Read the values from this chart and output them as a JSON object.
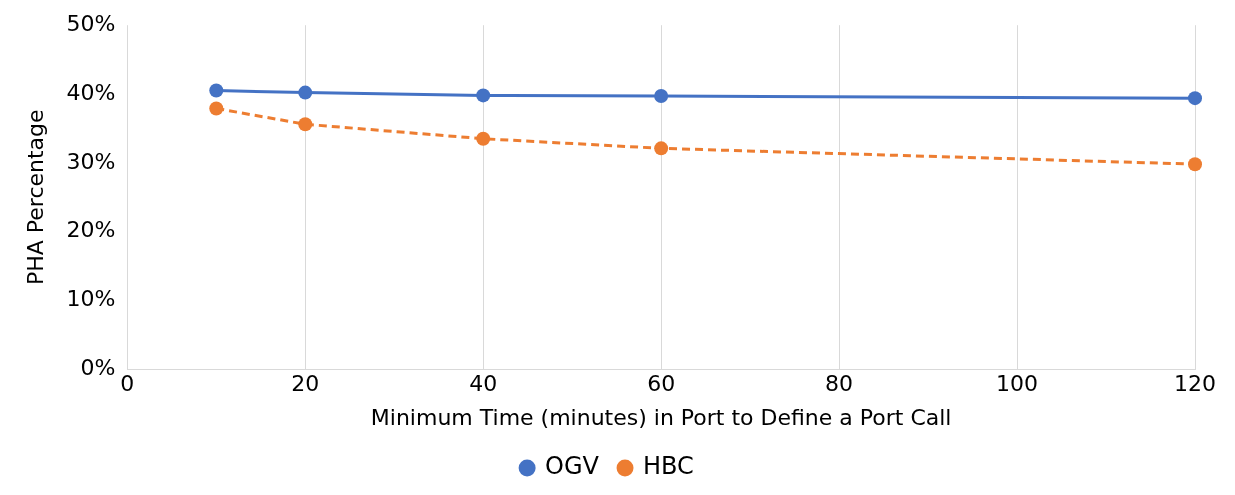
{
  "chart_data": {
    "type": "line",
    "xlabel": "Minimum Time (minutes) in Port to Define a Port Call",
    "ylabel": "PHA Percentage",
    "x": [
      10,
      20,
      40,
      60,
      120
    ],
    "series": [
      {
        "name": "OGV",
        "color": "#4472c4",
        "values": [
          40.5,
          40.2,
          39.8,
          39.7,
          39.4
        ],
        "line_style": "solid"
      },
      {
        "name": "HBC",
        "color": "#ed7d31",
        "values": [
          37.9,
          35.6,
          33.5,
          32.1,
          29.8
        ],
        "line_style": "dashed"
      }
    ],
    "xlim": [
      0,
      120
    ],
    "xticks": [
      0,
      20,
      40,
      60,
      80,
      100,
      120
    ],
    "ylim": [
      0,
      50
    ],
    "yticks": [
      {
        "value": 0,
        "label": "0%"
      },
      {
        "value": 10,
        "label": "10%"
      },
      {
        "value": 20,
        "label": "20%"
      },
      {
        "value": 30,
        "label": "30%"
      },
      {
        "value": 40,
        "label": "40%"
      },
      {
        "value": 50,
        "label": "50%"
      }
    ],
    "grid": "x",
    "legend": "bottom",
    "marker": "circle"
  }
}
